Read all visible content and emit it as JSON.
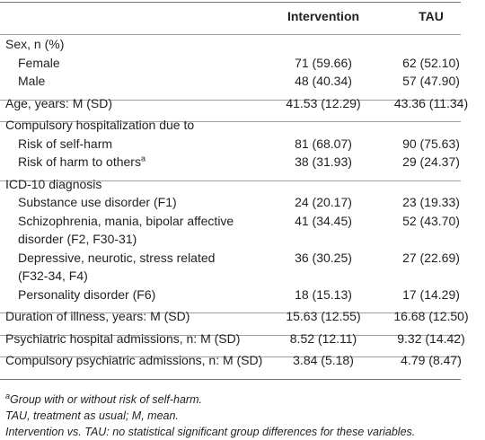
{
  "table": {
    "columns": [
      "Intervention",
      "TAU"
    ],
    "sections": [
      {
        "label": "Sex, n (%)",
        "rows": [
          {
            "label": "Female",
            "intervention": "71 (59.66)",
            "tau": "62 (52.10)"
          },
          {
            "label": "Male",
            "intervention": "48 (40.34)",
            "tau": "57 (47.90)"
          }
        ]
      },
      {
        "label": "Age, years: M (SD)",
        "intervention": "41.53 (12.29)",
        "tau": "43.36 (11.34)"
      },
      {
        "label": "Compulsory hospitalization due to",
        "rows": [
          {
            "label": "Risk of self-harm",
            "intervention": "81 (68.07)",
            "tau": "90 (75.63)"
          },
          {
            "label": "Risk of harm to others",
            "sup": "a",
            "intervention": "38 (31.93)",
            "tau": "29 (24.37)"
          }
        ]
      },
      {
        "label": "ICD-10 diagnosis",
        "rows": [
          {
            "label": "Substance use disorder (F1)",
            "intervention": "24 (20.17)",
            "tau": "23 (19.33)"
          },
          {
            "label_lines": [
              "Schizophrenia, mania, bipolar affective",
              "disorder (F2, F30-31)"
            ],
            "intervention": "41 (34.45)",
            "tau": "52 (43.70)"
          },
          {
            "label_lines": [
              "Depressive, neurotic, stress related",
              "(F32-34, F4)"
            ],
            "intervention": "36 (30.25)",
            "tau": "27 (22.69)"
          },
          {
            "label": "Personality disorder (F6)",
            "intervention": "18 (15.13)",
            "tau": "17 (14.29)"
          }
        ]
      },
      {
        "label": "Duration of illness, years: M (SD)",
        "intervention": "15.63 (12.55)",
        "tau": "16.68 (12.50)"
      },
      {
        "label": "Psychiatric hospital admissions, n: M (SD)",
        "intervention": "8.52 (12.11)",
        "tau": "9.32 (14.42)"
      },
      {
        "label": "Compulsory psychiatric admissions, n: M (SD)",
        "intervention": "3.84 (5.18)",
        "tau": "4.79 (8.47)"
      }
    ],
    "footnotes": [
      {
        "sup": "a",
        "text": "Group with or without risk of self-harm."
      },
      {
        "text": "TAU, treatment as usual; M, mean."
      },
      {
        "text": "Intervention vs. TAU: no statistical significant group differences for these variables."
      }
    ]
  }
}
